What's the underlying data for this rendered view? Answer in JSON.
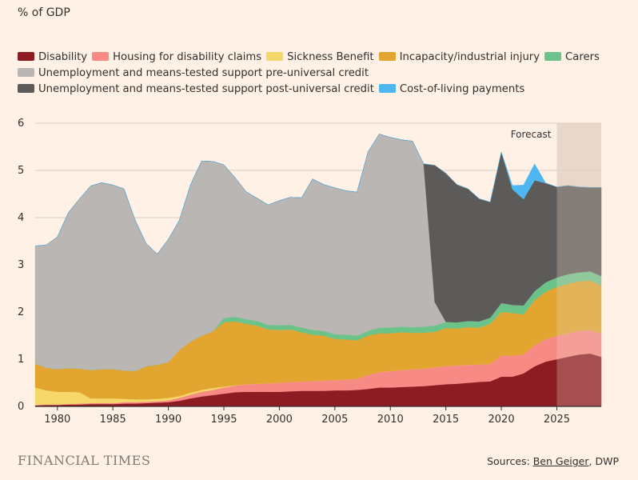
{
  "header": {
    "y_unit": "% of GDP"
  },
  "legend": [
    {
      "label": "Disability",
      "color": "#8C1B22"
    },
    {
      "label": "Housing for disability claims",
      "color": "#F78A85"
    },
    {
      "label": "Sickness Benefit",
      "color": "#F5D76A"
    },
    {
      "label": "Incapacity/industrial injury",
      "color": "#E1A530"
    },
    {
      "label": "Carers",
      "color": "#6CC38A"
    },
    {
      "label": "Unemployment and means-tested support pre-universal credit",
      "color": "#B9B6B3"
    },
    {
      "label": "Unemployment and means-tested support post-universal credit",
      "color": "#5D5B59"
    },
    {
      "label": "Cost-of-living payments",
      "color": "#4EB7F2"
    }
  ],
  "footer": {
    "logo": "FINANCIAL TIMES",
    "source_prefix": "Sources: ",
    "source_link": "Ben Geiger",
    "source_suffix": ", DWP"
  },
  "chart_data": {
    "type": "area",
    "stacked": true,
    "x": [
      1978,
      1979,
      1980,
      1981,
      1982,
      1983,
      1984,
      1985,
      1986,
      1987,
      1988,
      1989,
      1990,
      1991,
      1992,
      1993,
      1994,
      1995,
      1996,
      1997,
      1998,
      1999,
      2000,
      2001,
      2002,
      2003,
      2004,
      2005,
      2006,
      2007,
      2008,
      2009,
      2010,
      2011,
      2012,
      2013,
      2014,
      2015,
      2016,
      2017,
      2018,
      2019,
      2020,
      2021,
      2022,
      2023,
      2024,
      2025,
      2026,
      2027,
      2028,
      2029
    ],
    "xlim": [
      1978,
      2029
    ],
    "x_ticks": [
      1980,
      1985,
      1990,
      1995,
      2000,
      2005,
      2010,
      2015,
      2020,
      2025
    ],
    "ylim": [
      0,
      6
    ],
    "y_ticks": [
      0,
      1,
      2,
      3,
      4,
      5,
      6
    ],
    "grid": true,
    "legend_position": "top",
    "forecast": {
      "label": "Forecast",
      "from": 2025,
      "to": 2029
    },
    "series": [
      {
        "name": "Disability",
        "color": "#8C1B22",
        "values": [
          0.02,
          0.03,
          0.03,
          0.04,
          0.04,
          0.05,
          0.05,
          0.05,
          0.06,
          0.06,
          0.07,
          0.08,
          0.09,
          0.12,
          0.17,
          0.21,
          0.24,
          0.27,
          0.3,
          0.31,
          0.31,
          0.31,
          0.31,
          0.32,
          0.33,
          0.33,
          0.33,
          0.34,
          0.34,
          0.35,
          0.37,
          0.4,
          0.4,
          0.41,
          0.42,
          0.43,
          0.45,
          0.47,
          0.48,
          0.5,
          0.52,
          0.53,
          0.63,
          0.63,
          0.7,
          0.85,
          0.95,
          1.0,
          1.05,
          1.1,
          1.12,
          1.05
        ]
      },
      {
        "name": "Housing for disability claims",
        "color": "#F78A85",
        "values": [
          0.01,
          0.01,
          0.01,
          0.01,
          0.02,
          0.02,
          0.02,
          0.02,
          0.03,
          0.03,
          0.03,
          0.03,
          0.04,
          0.06,
          0.08,
          0.1,
          0.11,
          0.13,
          0.14,
          0.16,
          0.17,
          0.18,
          0.19,
          0.2,
          0.2,
          0.21,
          0.22,
          0.22,
          0.23,
          0.24,
          0.3,
          0.33,
          0.35,
          0.36,
          0.37,
          0.37,
          0.38,
          0.39,
          0.39,
          0.38,
          0.37,
          0.37,
          0.45,
          0.45,
          0.4,
          0.45,
          0.48,
          0.5,
          0.5,
          0.5,
          0.5,
          0.49
        ]
      },
      {
        "name": "Sickness Benefit",
        "color": "#F5D76A",
        "values": [
          0.37,
          0.3,
          0.27,
          0.26,
          0.24,
          0.1,
          0.1,
          0.1,
          0.07,
          0.06,
          0.05,
          0.05,
          0.05,
          0.04,
          0.04,
          0.04,
          0.04,
          0.02,
          0.01,
          0,
          0,
          0,
          0,
          0,
          0,
          0,
          0,
          0,
          0,
          0,
          0,
          0,
          0,
          0,
          0,
          0,
          0,
          0,
          0,
          0,
          0,
          0,
          0,
          0,
          0,
          0,
          0,
          0,
          0,
          0,
          0,
          0
        ]
      },
      {
        "name": "Incapacity/industrial injury",
        "color": "#E1A530",
        "values": [
          0.5,
          0.48,
          0.48,
          0.5,
          0.5,
          0.6,
          0.62,
          0.62,
          0.6,
          0.6,
          0.7,
          0.72,
          0.76,
          0.98,
          1.08,
          1.15,
          1.2,
          1.36,
          1.35,
          1.28,
          1.23,
          1.14,
          1.12,
          1.11,
          1.04,
          0.98,
          0.95,
          0.87,
          0.85,
          0.81,
          0.83,
          0.82,
          0.8,
          0.8,
          0.77,
          0.76,
          0.75,
          0.8,
          0.78,
          0.8,
          0.78,
          0.85,
          0.92,
          0.9,
          0.85,
          0.95,
          1.0,
          1.03,
          1.05,
          1.05,
          1.05,
          1.02
        ]
      },
      {
        "name": "Carers",
        "color": "#6CC38A",
        "values": [
          0,
          0,
          0,
          0,
          0,
          0,
          0,
          0,
          0,
          0,
          0,
          0,
          0,
          0,
          0,
          0,
          0,
          0.09,
          0.1,
          0.1,
          0.1,
          0.1,
          0.1,
          0.1,
          0.1,
          0.1,
          0.1,
          0.1,
          0.1,
          0.1,
          0.1,
          0.12,
          0.12,
          0.12,
          0.12,
          0.13,
          0.13,
          0.13,
          0.13,
          0.13,
          0.13,
          0.13,
          0.19,
          0.17,
          0.19,
          0.19,
          0.2,
          0.2,
          0.2,
          0.19,
          0.19,
          0.2
        ]
      },
      {
        "name": "Unemployment and means-tested support pre-universal credit",
        "color": "#B9B6B3",
        "values": [
          2.5,
          2.6,
          2.8,
          3.3,
          3.6,
          3.9,
          3.95,
          3.9,
          3.85,
          3.2,
          2.6,
          2.35,
          2.6,
          2.75,
          3.33,
          3.7,
          3.6,
          3.25,
          2.95,
          2.7,
          2.6,
          2.54,
          2.64,
          2.7,
          2.75,
          3.2,
          3.1,
          3.1,
          3.05,
          3.04,
          3.8,
          4.1,
          4.03,
          3.96,
          3.94,
          3.45,
          0.5,
          0,
          0,
          0,
          0,
          0,
          0,
          0,
          0,
          0,
          0,
          0,
          0,
          0,
          0,
          0
        ]
      },
      {
        "name": "Unemployment and means-tested support post-universal credit",
        "color": "#5D5B59",
        "values": [
          0,
          0,
          0,
          0,
          0,
          0,
          0,
          0,
          0,
          0,
          0,
          0,
          0,
          0,
          0,
          0,
          0,
          0,
          0,
          0,
          0,
          0,
          0,
          0,
          0,
          0,
          0,
          0,
          0,
          0,
          0,
          0,
          0,
          0,
          0,
          0,
          2.9,
          3.15,
          2.92,
          2.8,
          2.6,
          2.45,
          3.2,
          2.45,
          2.25,
          2.35,
          2.1,
          1.92,
          1.88,
          1.81,
          1.78,
          1.88
        ]
      },
      {
        "name": "Cost-of-living payments",
        "color": "#4EB7F2",
        "values": [
          0,
          0,
          0,
          0,
          0,
          0,
          0,
          0,
          0,
          0,
          0,
          0,
          0,
          0,
          0,
          0,
          0,
          0,
          0,
          0,
          0,
          0,
          0,
          0,
          0,
          0,
          0,
          0,
          0,
          0,
          0,
          0,
          0,
          0,
          0,
          0,
          0,
          0,
          0,
          0,
          0,
          0,
          0,
          0.08,
          0.3,
          0.35,
          0,
          0,
          0,
          0,
          0,
          0
        ]
      }
    ]
  }
}
